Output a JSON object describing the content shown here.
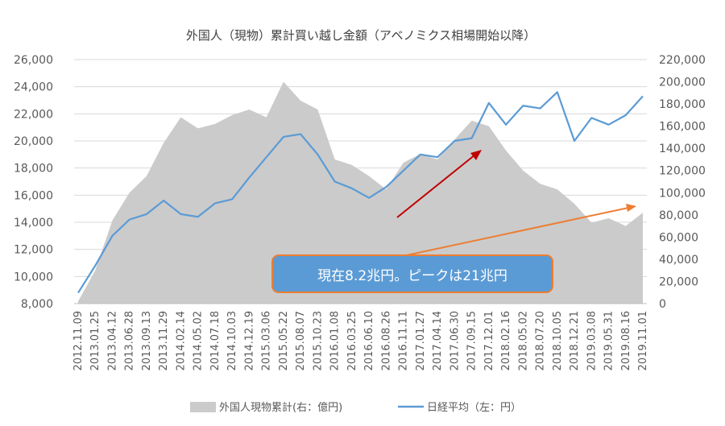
{
  "chart_data": {
    "type": "area+line",
    "title": "外国人（現物）累計買い越し金額（アベノミクス相場開始以降）",
    "x_tick_labels": [
      "2012.11.09",
      "2013.01.25",
      "2013.04.12",
      "2013.06.28",
      "2013.09.13",
      "2013.11.29",
      "2014.02.14",
      "2014.05.02",
      "2014.07.18",
      "2014.10.03",
      "2014.12.19",
      "2015.03.06",
      "2015.05.22",
      "2015.08.07",
      "2015.10.23",
      "2016.01.08",
      "2016.03.25",
      "2016.06.10",
      "2016.08.26",
      "2016.11.11",
      "2017.01.27",
      "2017.04.14",
      "2017.06.30",
      "2017.09.15",
      "2017.12.01",
      "2018.02.16",
      "2018.05.02",
      "2018.07.20",
      "2018.10.05",
      "2018.12.21",
      "2019.03.08",
      "2019.05.31",
      "2019.08.16",
      "2019.11.01"
    ],
    "y_left": {
      "label": "日経平均（左：円）",
      "ylim": [
        8000,
        26000
      ],
      "ticks": [
        "8,000",
        "10,000",
        "12,000",
        "14,000",
        "16,000",
        "18,000",
        "20,000",
        "22,000",
        "24,000",
        "26,000"
      ]
    },
    "y_right": {
      "label": "外国人現物累計(右：億円)",
      "ylim": [
        0,
        220000
      ],
      "ticks": [
        "0",
        "20,000",
        "40,000",
        "60,000",
        "80,000",
        "100,000",
        "120,000",
        "140,000",
        "160,000",
        "180,000",
        "200,000",
        "220,000"
      ]
    },
    "series": [
      {
        "name": "外国人現物累計(右：億円)",
        "type": "area",
        "axis": "right",
        "color": "#cbcbcb",
        "x": [
          0,
          1,
          2,
          3,
          4,
          5,
          6,
          7,
          8,
          9,
          10,
          11,
          12,
          13,
          14,
          15,
          16,
          17,
          18,
          19,
          20,
          21,
          22,
          23,
          24,
          25,
          26,
          27,
          28,
          29,
          30,
          31,
          32,
          33
        ],
        "values": [
          2000,
          30000,
          75000,
          100000,
          115000,
          145000,
          168000,
          158000,
          162000,
          170000,
          175000,
          168000,
          200000,
          183000,
          175000,
          130000,
          125000,
          115000,
          103000,
          127000,
          135000,
          130000,
          148000,
          165000,
          160000,
          138000,
          120000,
          108000,
          103000,
          90000,
          73000,
          77000,
          70000,
          82000
        ]
      },
      {
        "name": "日経平均（左：円）",
        "type": "line",
        "axis": "left",
        "color": "#5b9bd5",
        "x": [
          0,
          1,
          2,
          3,
          4,
          5,
          6,
          7,
          8,
          9,
          10,
          11,
          12,
          13,
          14,
          15,
          16,
          17,
          18,
          19,
          20,
          21,
          22,
          23,
          24,
          25,
          26,
          27,
          28,
          29,
          30,
          31,
          32,
          33
        ],
        "values": [
          8800,
          10800,
          13000,
          14200,
          14600,
          15600,
          14600,
          14400,
          15400,
          15700,
          17300,
          18800,
          20300,
          20500,
          19000,
          17000,
          16500,
          15800,
          16600,
          17800,
          19000,
          18800,
          20000,
          20200,
          22800,
          21200,
          22600,
          22400,
          23600,
          20000,
          21700,
          21200,
          21900,
          23300
        ]
      }
    ],
    "legend": {
      "position": "bottom",
      "entries": [
        "外国人現物累計(右：億円)",
        "日経平均（左：円）"
      ]
    },
    "annotations": [
      {
        "text": "現在8.2兆円。ピークは21兆円"
      }
    ]
  }
}
